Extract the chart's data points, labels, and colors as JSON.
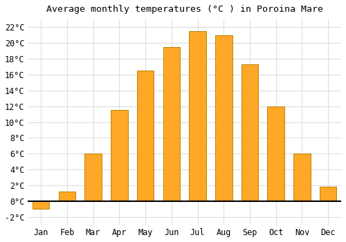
{
  "months": [
    "Jan",
    "Feb",
    "Mar",
    "Apr",
    "May",
    "Jun",
    "Jul",
    "Aug",
    "Sep",
    "Oct",
    "Nov",
    "Dec"
  ],
  "values": [
    -1.0,
    1.2,
    6.0,
    11.5,
    16.5,
    19.5,
    21.5,
    21.0,
    17.3,
    12.0,
    6.0,
    1.8
  ],
  "bar_color": "#FFA726",
  "bar_edge_color": "#B8860B",
  "title": "Average monthly temperatures (°C ) in Poroina Mare",
  "ylim": [
    -3,
    23
  ],
  "yticks": [
    -2,
    0,
    2,
    4,
    6,
    8,
    10,
    12,
    14,
    16,
    18,
    20,
    22
  ],
  "background_color": "#FFFFFF",
  "grid_color": "#DDDDDD",
  "title_fontsize": 9.5,
  "tick_fontsize": 8.5
}
